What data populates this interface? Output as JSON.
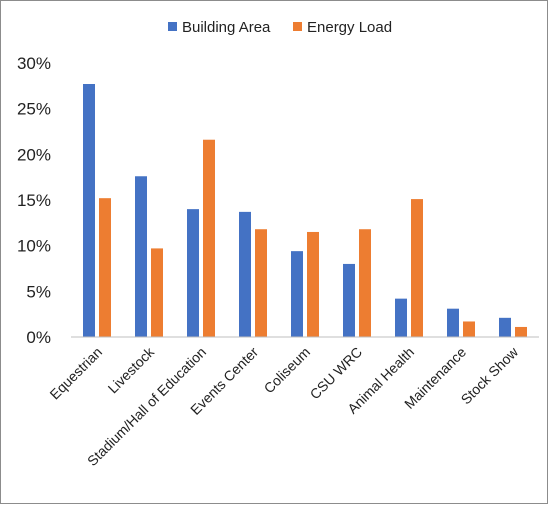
{
  "chart_data": {
    "type": "bar",
    "categories": [
      "Equestrian",
      "Livestock",
      "Stadium/Hall of Education",
      "Events Center",
      "Coliseum",
      "CSU WRC",
      "Animal Health",
      "Maintenance",
      "Stock Show"
    ],
    "series": [
      {
        "name": "Building Area",
        "color": "#4472C4",
        "values": [
          27.7,
          17.6,
          14.0,
          13.7,
          9.4,
          8.0,
          4.2,
          3.1,
          2.1
        ]
      },
      {
        "name": "Energy Load",
        "color": "#ED7D31",
        "values": [
          15.2,
          9.7,
          21.6,
          11.8,
          11.5,
          11.8,
          15.1,
          1.7,
          1.1
        ]
      }
    ],
    "ylim": [
      0,
      30
    ],
    "yticks": [
      0,
      5,
      10,
      15,
      20,
      25,
      30
    ],
    "ytick_labels": [
      "0%",
      "5%",
      "10%",
      "15%",
      "20%",
      "25%",
      "30%"
    ],
    "title": "",
    "xlabel": "",
    "ylabel": "",
    "legend_position": "top-center",
    "grid": false
  }
}
